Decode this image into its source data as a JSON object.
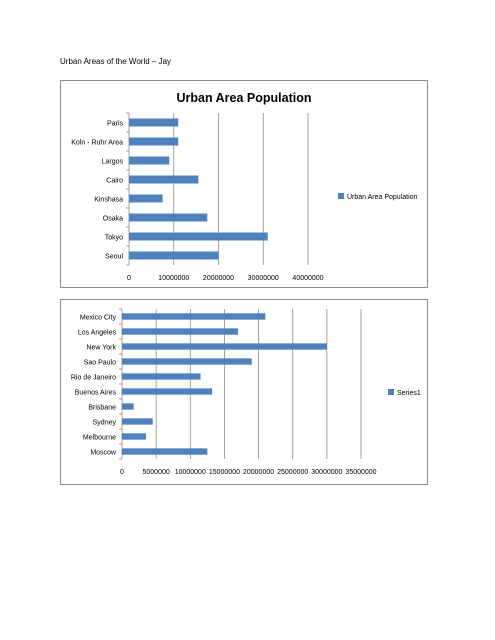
{
  "document": {
    "title": "Urban Areas of the World – Jay"
  },
  "chart_data": [
    {
      "type": "bar",
      "orientation": "horizontal",
      "title": "Urban Area Population",
      "categories": [
        "Paris",
        "Koln - Ruhr Area",
        "Largos",
        "Cairo",
        "Kinshasa",
        "Osaka",
        "Tokyo",
        "Seoul"
      ],
      "series": [
        {
          "name": "Urban Area Population",
          "values": [
            11000000,
            11000000,
            9000000,
            15500000,
            7500000,
            17500000,
            31000000,
            20000000
          ]
        }
      ],
      "xlim": [
        0,
        40000000
      ],
      "xticks": [
        "0",
        "10000000",
        "20000000",
        "30000000",
        "40000000"
      ],
      "grid": true,
      "legend_position": "right",
      "bar_color": "#4f81bd"
    },
    {
      "type": "bar",
      "orientation": "horizontal",
      "title": "",
      "categories": [
        "Mexico City",
        "Los Angeles",
        "New York",
        "Sao Paulo",
        "Rio de Janeiro",
        "Buenos Aires",
        "Brisbane",
        "Sydney",
        "Melbourne",
        "Moscow"
      ],
      "series": [
        {
          "name": "Series1",
          "values": [
            21000000,
            17000000,
            30000000,
            19000000,
            11500000,
            13200000,
            1700000,
            4500000,
            3500000,
            12500000
          ]
        }
      ],
      "xlim": [
        0,
        35000000
      ],
      "xticks": [
        "0",
        "5000000",
        "10000000",
        "15000000",
        "20000000",
        "25000000",
        "30000000",
        "35000000"
      ],
      "grid": true,
      "legend_position": "right",
      "bar_color": "#4f81bd"
    }
  ]
}
